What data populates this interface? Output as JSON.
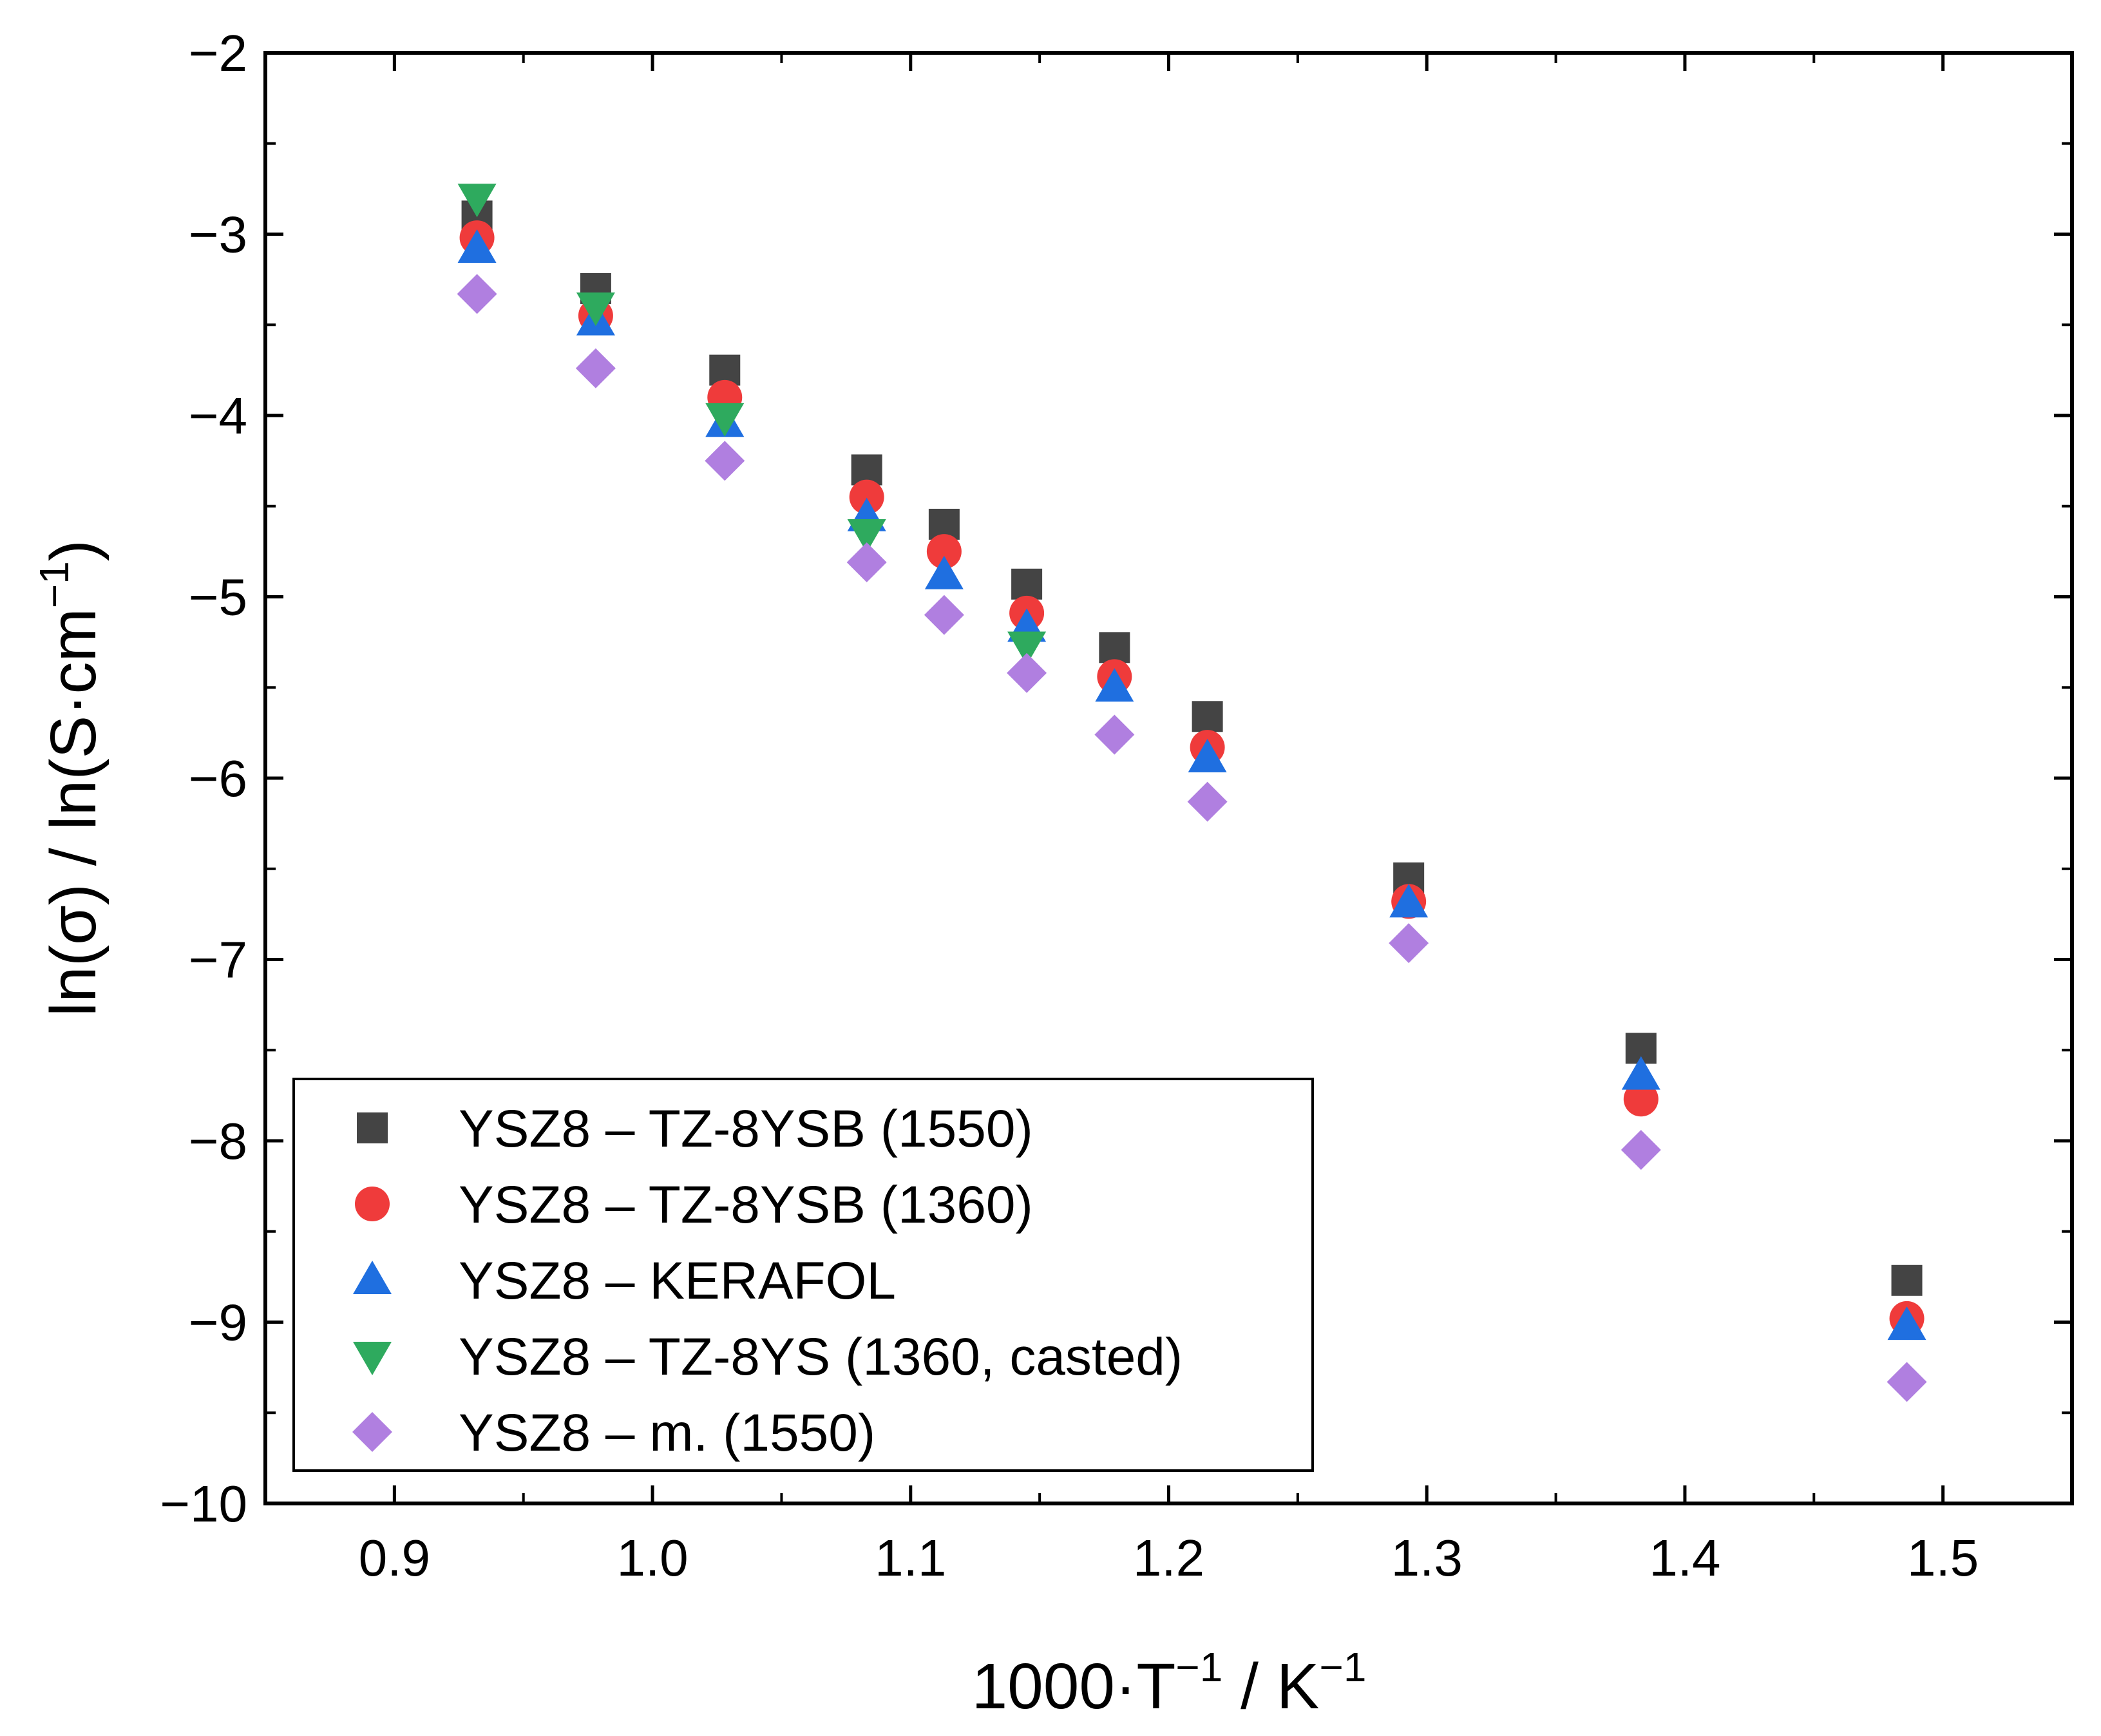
{
  "chart_data": {
    "type": "scatter",
    "title": "",
    "xlabel": {
      "main": "1000·T",
      "sup1": "−1",
      "mid": " / K",
      "sup2": "−1"
    },
    "ylabel": {
      "main": "ln(σ) / ln(S·cm",
      "sup": "−1",
      "end": ")"
    },
    "xlim": [
      0.85,
      1.55
    ],
    "ylim": [
      -10,
      -2
    ],
    "xticks": [
      0.9,
      1.0,
      1.1,
      1.2,
      1.3,
      1.4,
      1.5
    ],
    "xtick_labels": [
      "0.9",
      "1.0",
      "1.1",
      "1.2",
      "1.3",
      "1.4",
      "1.5"
    ],
    "yticks": [
      -10,
      -9,
      -8,
      -7,
      -6,
      -5,
      -4,
      -3,
      -2
    ],
    "ytick_labels": [
      "−10",
      "−9",
      "−8",
      "−7",
      "−6",
      "−5",
      "−4",
      "−3",
      "−2"
    ],
    "grid": false,
    "legend_position": "bottom-left",
    "series": [
      {
        "name": "YSZ8 – TZ-8YSB (1550)",
        "marker": "square",
        "color": "#444444",
        "x": [
          0.932,
          0.978,
          1.028,
          1.083,
          1.113,
          1.145,
          1.179,
          1.215,
          1.293,
          1.383,
          1.486
        ],
        "y": [
          -2.9,
          -3.3,
          -3.75,
          -4.3,
          -4.6,
          -4.93,
          -5.28,
          -5.66,
          -6.55,
          -7.49,
          -8.77
        ]
      },
      {
        "name": "YSZ8 – TZ-8YSB (1360)",
        "marker": "circle",
        "color": "#ef3b3b",
        "x": [
          0.932,
          0.978,
          1.028,
          1.083,
          1.113,
          1.145,
          1.179,
          1.215,
          1.293,
          1.383,
          1.486
        ],
        "y": [
          -3.02,
          -3.45,
          -3.9,
          -4.45,
          -4.75,
          -5.09,
          -5.44,
          -5.83,
          -6.68,
          -7.77,
          -8.98
        ]
      },
      {
        "name": "YSZ8 – KERAFOL",
        "marker": "triangle-up",
        "color": "#1f6fe0",
        "x": [
          0.932,
          0.978,
          1.028,
          1.083,
          1.113,
          1.145,
          1.179,
          1.215,
          1.293,
          1.383,
          1.486
        ],
        "y": [
          -3.08,
          -3.48,
          -4.04,
          -4.56,
          -4.88,
          -5.17,
          -5.5,
          -5.89,
          -6.69,
          -7.64,
          -9.02
        ]
      },
      {
        "name": "YSZ8 – TZ-8YS (1360, casted)",
        "marker": "triangle-down",
        "color": "#2eaa5e",
        "x": [
          0.932,
          0.978,
          1.028,
          1.083,
          1.145
        ],
        "y": [
          -2.8,
          -3.4,
          -4.01,
          -4.65,
          -5.27
        ]
      },
      {
        "name": "YSZ8 – m. (1550)",
        "marker": "diamond",
        "color": "#b07fe0",
        "x": [
          0.932,
          0.978,
          1.028,
          1.083,
          1.113,
          1.145,
          1.179,
          1.215,
          1.293,
          1.383,
          1.486
        ],
        "y": [
          -3.33,
          -3.74,
          -4.25,
          -4.81,
          -5.1,
          -5.42,
          -5.76,
          -6.13,
          -6.91,
          -8.05,
          -9.33
        ]
      }
    ]
  }
}
